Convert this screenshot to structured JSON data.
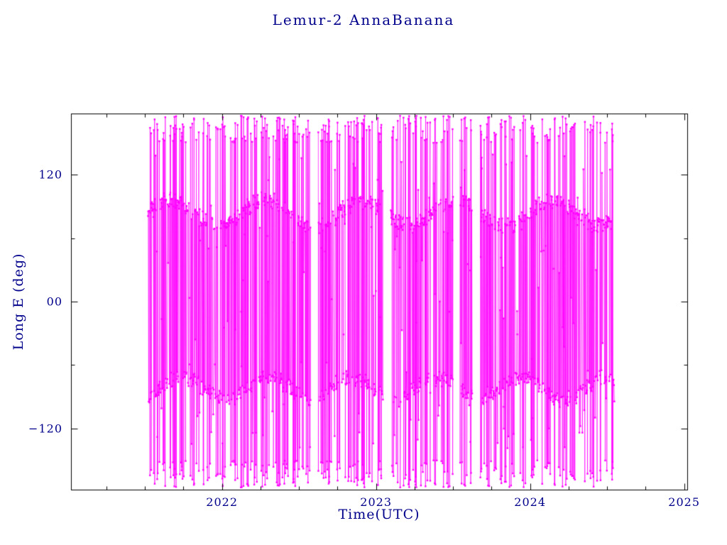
{
  "page": {
    "background": "#ffffff"
  },
  "chart_data": {
    "type": "line",
    "title": "Lemur-2 AnnaBanana",
    "xlabel": "Time(UTC)",
    "ylabel": "Long E (deg)",
    "xlim": [
      2021.02,
      2025.02
    ],
    "ylim": [
      -178,
      178
    ],
    "grid": false,
    "legend": "none",
    "series_color": "#ff00ff",
    "axis_color": "#000000",
    "label_color": "#00008b",
    "xticks": [
      {
        "value": 2022,
        "label": "2022"
      },
      {
        "value": 2023,
        "label": "2023"
      },
      {
        "value": 2024,
        "label": "2024"
      },
      {
        "value": 2025,
        "label": "2025"
      }
    ],
    "yticks": [
      {
        "value": 120,
        "label": "120"
      },
      {
        "value": 0,
        "label": "00"
      },
      {
        "value": -120,
        "label": "−120"
      }
    ],
    "minor_xtick_step": 0.25,
    "minor_yticks": [
      -60,
      60
    ],
    "description": "Dense magenta satellite longitude-vs-time track; points cluster in two wavy horizontal bands near +84 deg and -82 deg with frequent wrap lines spanning the full -178..178 deg range, data present from mid-2021 to mid-2024 with a few narrow outage gaps",
    "data_generator": {
      "seed": 42,
      "t_start": 2021.52,
      "t_end": 2024.55,
      "n_points": 1500,
      "bands": [
        {
          "center": 84,
          "wobble_amp": 12,
          "wobble_period": 0.62,
          "jitter": 7
        },
        {
          "center": -82,
          "wobble_amp": 10,
          "wobble_period": 0.55,
          "jitter": 7
        }
      ],
      "switch_prob": 0.45,
      "wrap_prob": 0.21,
      "outlier_prob": 0.12,
      "outlier_range": [
        -140,
        140
      ],
      "wrap_height_min": 150,
      "wrap_height_max": 176,
      "gaps": [
        [
          2022.575,
          2022.625
        ],
        [
          2023.045,
          2023.095
        ],
        [
          2023.5,
          2023.545
        ],
        [
          2023.625,
          2023.675
        ]
      ],
      "marker_size": 2.4,
      "line_width": 0.7
    }
  }
}
